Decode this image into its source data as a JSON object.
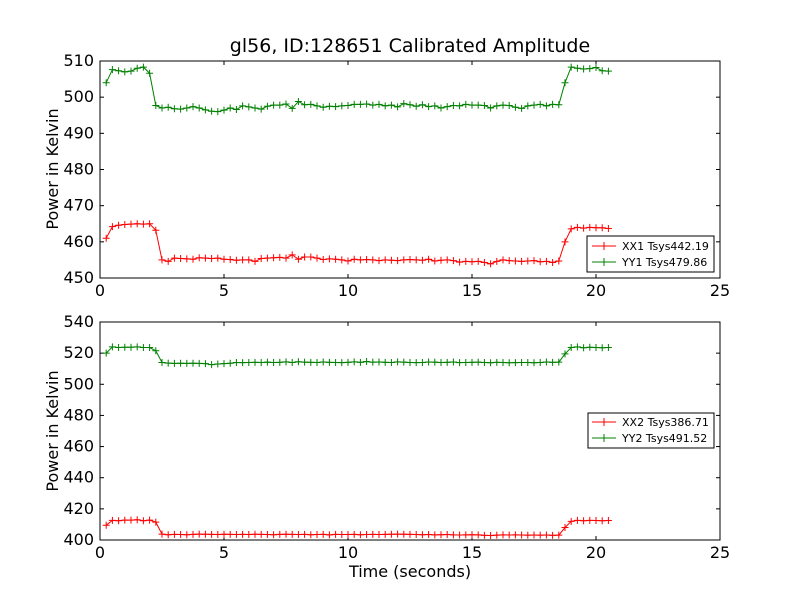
{
  "chart_data": [
    {
      "type": "line",
      "title": "gl56, ID:128651 Calibrated Amplitude",
      "xlabel": "",
      "ylabel": "Power in Kelvin",
      "xlim": [
        0,
        25
      ],
      "ylim": [
        450,
        510
      ],
      "xticks": [
        "0",
        "5",
        "10",
        "15",
        "20",
        "25"
      ],
      "yticks": [
        "450",
        "460",
        "470",
        "480",
        "490",
        "500",
        "510"
      ],
      "grid": false,
      "legend_position": "lower-right",
      "series": [
        {
          "name": "XX1 Tsys442.19",
          "color": "#ff0000",
          "x": [
            0.25,
            0.5,
            0.75,
            1.0,
            1.25,
            1.5,
            1.75,
            2.0,
            2.25,
            2.5,
            2.75,
            3.0,
            3.25,
            3.5,
            3.75,
            4.0,
            4.25,
            4.5,
            4.75,
            5.0,
            5.25,
            5.5,
            5.75,
            6.0,
            6.25,
            6.5,
            6.75,
            7.0,
            7.25,
            7.5,
            7.75,
            8.0,
            8.25,
            8.5,
            8.75,
            9.0,
            9.25,
            9.5,
            9.75,
            10.0,
            10.25,
            10.5,
            10.75,
            11.0,
            11.25,
            11.5,
            11.75,
            12.0,
            12.25,
            12.5,
            12.75,
            13.0,
            13.25,
            13.5,
            13.75,
            14.0,
            14.25,
            14.5,
            14.75,
            15.0,
            15.25,
            15.5,
            15.75,
            16.0,
            16.25,
            16.5,
            16.75,
            17.0,
            17.25,
            17.5,
            17.75,
            18.0,
            18.25,
            18.5,
            18.75,
            19.0,
            19.25,
            19.5,
            19.75,
            20.0,
            20.25,
            20.5
          ],
          "y": [
            461.0,
            464.2,
            464.6,
            464.8,
            464.9,
            465.0,
            464.9,
            465.0,
            463.2,
            455.0,
            454.6,
            455.5,
            455.4,
            455.3,
            455.2,
            455.6,
            455.5,
            455.4,
            455.5,
            455.2,
            455.1,
            454.9,
            455.0,
            455.0,
            454.6,
            455.4,
            455.5,
            455.6,
            455.7,
            455.5,
            456.4,
            455.2,
            455.8,
            455.8,
            455.5,
            455.1,
            455.3,
            455.2,
            455.0,
            454.7,
            455.2,
            455.0,
            455.1,
            455.0,
            454.8,
            455.0,
            454.9,
            454.8,
            455.0,
            455.1,
            455.0,
            454.9,
            455.2,
            454.7,
            454.9,
            455.0,
            454.8,
            454.4,
            454.6,
            454.5,
            454.6,
            454.3,
            453.9,
            454.6,
            455.0,
            454.8,
            454.7,
            454.6,
            454.7,
            454.8,
            454.5,
            454.6,
            454.3,
            454.7,
            460.0,
            463.6,
            464.0,
            463.8,
            464.0,
            463.9,
            463.9,
            463.7
          ]
        },
        {
          "name": "YY1 Tsys479.86",
          "color": "#008000",
          "x": [
            0.25,
            0.5,
            0.75,
            1.0,
            1.25,
            1.5,
            1.75,
            2.0,
            2.25,
            2.5,
            2.75,
            3.0,
            3.25,
            3.5,
            3.75,
            4.0,
            4.25,
            4.5,
            4.75,
            5.0,
            5.25,
            5.5,
            5.75,
            6.0,
            6.25,
            6.5,
            6.75,
            7.0,
            7.25,
            7.5,
            7.75,
            8.0,
            8.25,
            8.5,
            8.75,
            9.0,
            9.25,
            9.5,
            9.75,
            10.0,
            10.25,
            10.5,
            10.75,
            11.0,
            11.25,
            11.5,
            11.75,
            12.0,
            12.25,
            12.5,
            12.75,
            13.0,
            13.25,
            13.5,
            13.75,
            14.0,
            14.25,
            14.5,
            14.75,
            15.0,
            15.25,
            15.5,
            15.75,
            16.0,
            16.25,
            16.5,
            16.75,
            17.0,
            17.25,
            17.5,
            17.75,
            18.0,
            18.25,
            18.5,
            18.75,
            19.0,
            19.25,
            19.5,
            19.75,
            20.0,
            20.25,
            20.5
          ],
          "y": [
            504.0,
            507.6,
            507.3,
            507.0,
            507.2,
            508.0,
            508.3,
            506.6,
            497.7,
            497.0,
            497.2,
            496.8,
            496.7,
            497.0,
            497.4,
            497.0,
            496.5,
            496.1,
            496.0,
            496.4,
            497.0,
            496.6,
            497.6,
            497.3,
            497.0,
            496.7,
            497.5,
            497.8,
            497.8,
            498.1,
            496.9,
            498.8,
            497.9,
            498.0,
            497.6,
            497.2,
            497.5,
            497.4,
            497.6,
            497.7,
            498.0,
            498.0,
            498.1,
            497.8,
            498.0,
            497.6,
            497.8,
            497.3,
            498.2,
            497.9,
            497.5,
            497.9,
            497.4,
            497.6,
            497.0,
            497.4,
            497.7,
            497.6,
            498.0,
            497.8,
            497.8,
            497.7,
            497.0,
            497.6,
            497.8,
            497.7,
            497.2,
            496.9,
            497.6,
            497.8,
            498.0,
            497.6,
            498.0,
            497.9,
            504.0,
            508.3,
            508.0,
            507.8,
            507.9,
            508.2,
            507.3,
            507.2
          ]
        }
      ]
    },
    {
      "type": "line",
      "title": "",
      "xlabel": "Time (seconds)",
      "ylabel": "Power in Kelvin",
      "xlim": [
        0,
        25
      ],
      "ylim": [
        400,
        540
      ],
      "xticks": [
        "0",
        "5",
        "10",
        "15",
        "20",
        "25"
      ],
      "yticks": [
        "400",
        "420",
        "440",
        "460",
        "480",
        "500",
        "520",
        "540"
      ],
      "grid": false,
      "legend_position": "center-right",
      "series": [
        {
          "name": "XX2 Tsys386.71",
          "color": "#ff0000",
          "x": [
            0.25,
            0.5,
            0.75,
            1.0,
            1.25,
            1.5,
            1.75,
            2.0,
            2.25,
            2.5,
            2.75,
            3.0,
            3.25,
            3.5,
            3.75,
            4.0,
            4.25,
            4.5,
            4.75,
            5.0,
            5.25,
            5.5,
            5.75,
            6.0,
            6.25,
            6.5,
            6.75,
            7.0,
            7.25,
            7.5,
            7.75,
            8.0,
            8.25,
            8.5,
            8.75,
            9.0,
            9.25,
            9.5,
            9.75,
            10.0,
            10.25,
            10.5,
            10.75,
            11.0,
            11.25,
            11.5,
            11.75,
            12.0,
            12.25,
            12.5,
            12.75,
            13.0,
            13.25,
            13.5,
            13.75,
            14.0,
            14.25,
            14.5,
            14.75,
            15.0,
            15.25,
            15.5,
            15.75,
            16.0,
            16.25,
            16.5,
            16.75,
            17.0,
            17.25,
            17.5,
            17.75,
            18.0,
            18.25,
            18.5,
            18.75,
            19.0,
            19.25,
            19.5,
            19.75,
            20.0,
            20.25,
            20.5
          ],
          "y": [
            409.5,
            412.6,
            412.4,
            412.8,
            412.8,
            413.0,
            412.4,
            412.8,
            411.5,
            403.8,
            403.4,
            403.6,
            403.5,
            403.4,
            403.6,
            403.8,
            403.7,
            403.6,
            403.5,
            403.7,
            403.6,
            403.5,
            403.6,
            403.5,
            403.7,
            403.6,
            403.5,
            403.4,
            403.6,
            403.7,
            403.6,
            403.5,
            403.6,
            403.4,
            403.5,
            403.6,
            403.3,
            403.6,
            403.5,
            403.5,
            403.6,
            403.4,
            403.5,
            403.6,
            403.5,
            403.6,
            403.7,
            403.8,
            403.7,
            403.6,
            403.5,
            403.4,
            403.5,
            403.3,
            403.4,
            403.5,
            403.3,
            403.2,
            403.3,
            403.4,
            403.3,
            403.0,
            402.9,
            403.1,
            403.3,
            403.2,
            403.3,
            403.2,
            403.1,
            403.2,
            403.1,
            403.2,
            403.0,
            403.1,
            408.0,
            412.0,
            412.6,
            412.4,
            412.6,
            412.5,
            412.4,
            412.5
          ]
        },
        {
          "name": "YY2 Tsys491.52",
          "color": "#008000",
          "x": [
            0.25,
            0.5,
            0.75,
            1.0,
            1.25,
            1.5,
            1.75,
            2.0,
            2.25,
            2.5,
            2.75,
            3.0,
            3.25,
            3.5,
            3.75,
            4.0,
            4.25,
            4.5,
            4.75,
            5.0,
            5.25,
            5.5,
            5.75,
            6.0,
            6.25,
            6.5,
            6.75,
            7.0,
            7.25,
            7.5,
            7.75,
            8.0,
            8.25,
            8.5,
            8.75,
            9.0,
            9.25,
            9.5,
            9.75,
            10.0,
            10.25,
            10.5,
            10.75,
            11.0,
            11.25,
            11.5,
            11.75,
            12.0,
            12.25,
            12.5,
            12.75,
            13.0,
            13.25,
            13.5,
            13.75,
            14.0,
            14.25,
            14.5,
            14.75,
            15.0,
            15.25,
            15.5,
            15.75,
            16.0,
            16.25,
            16.5,
            16.75,
            17.0,
            17.25,
            17.5,
            17.75,
            18.0,
            18.25,
            18.5,
            18.75,
            19.0,
            19.25,
            19.5,
            19.75,
            20.0,
            20.25,
            20.5
          ],
          "y": [
            520.0,
            524.0,
            523.6,
            523.8,
            523.8,
            524.0,
            523.6,
            523.6,
            521.5,
            514.0,
            513.6,
            513.4,
            513.5,
            513.4,
            513.5,
            513.4,
            513.3,
            512.6,
            513.0,
            513.3,
            513.5,
            514.0,
            513.9,
            514.0,
            514.1,
            514.0,
            514.2,
            514.0,
            514.1,
            514.4,
            514.0,
            514.5,
            514.2,
            514.1,
            514.0,
            514.3,
            514.1,
            514.0,
            513.9,
            514.1,
            514.4,
            514.1,
            514.6,
            514.2,
            514.3,
            514.1,
            514.0,
            514.4,
            514.2,
            514.0,
            513.9,
            514.0,
            514.3,
            514.2,
            514.0,
            514.1,
            514.3,
            513.9,
            514.0,
            514.1,
            514.2,
            514.0,
            513.8,
            514.1,
            514.0,
            513.8,
            513.9,
            514.0,
            514.0,
            513.8,
            514.0,
            514.3,
            514.1,
            514.2,
            519.5,
            523.6,
            524.0,
            523.5,
            523.8,
            523.6,
            523.5,
            523.6
          ]
        }
      ]
    }
  ]
}
